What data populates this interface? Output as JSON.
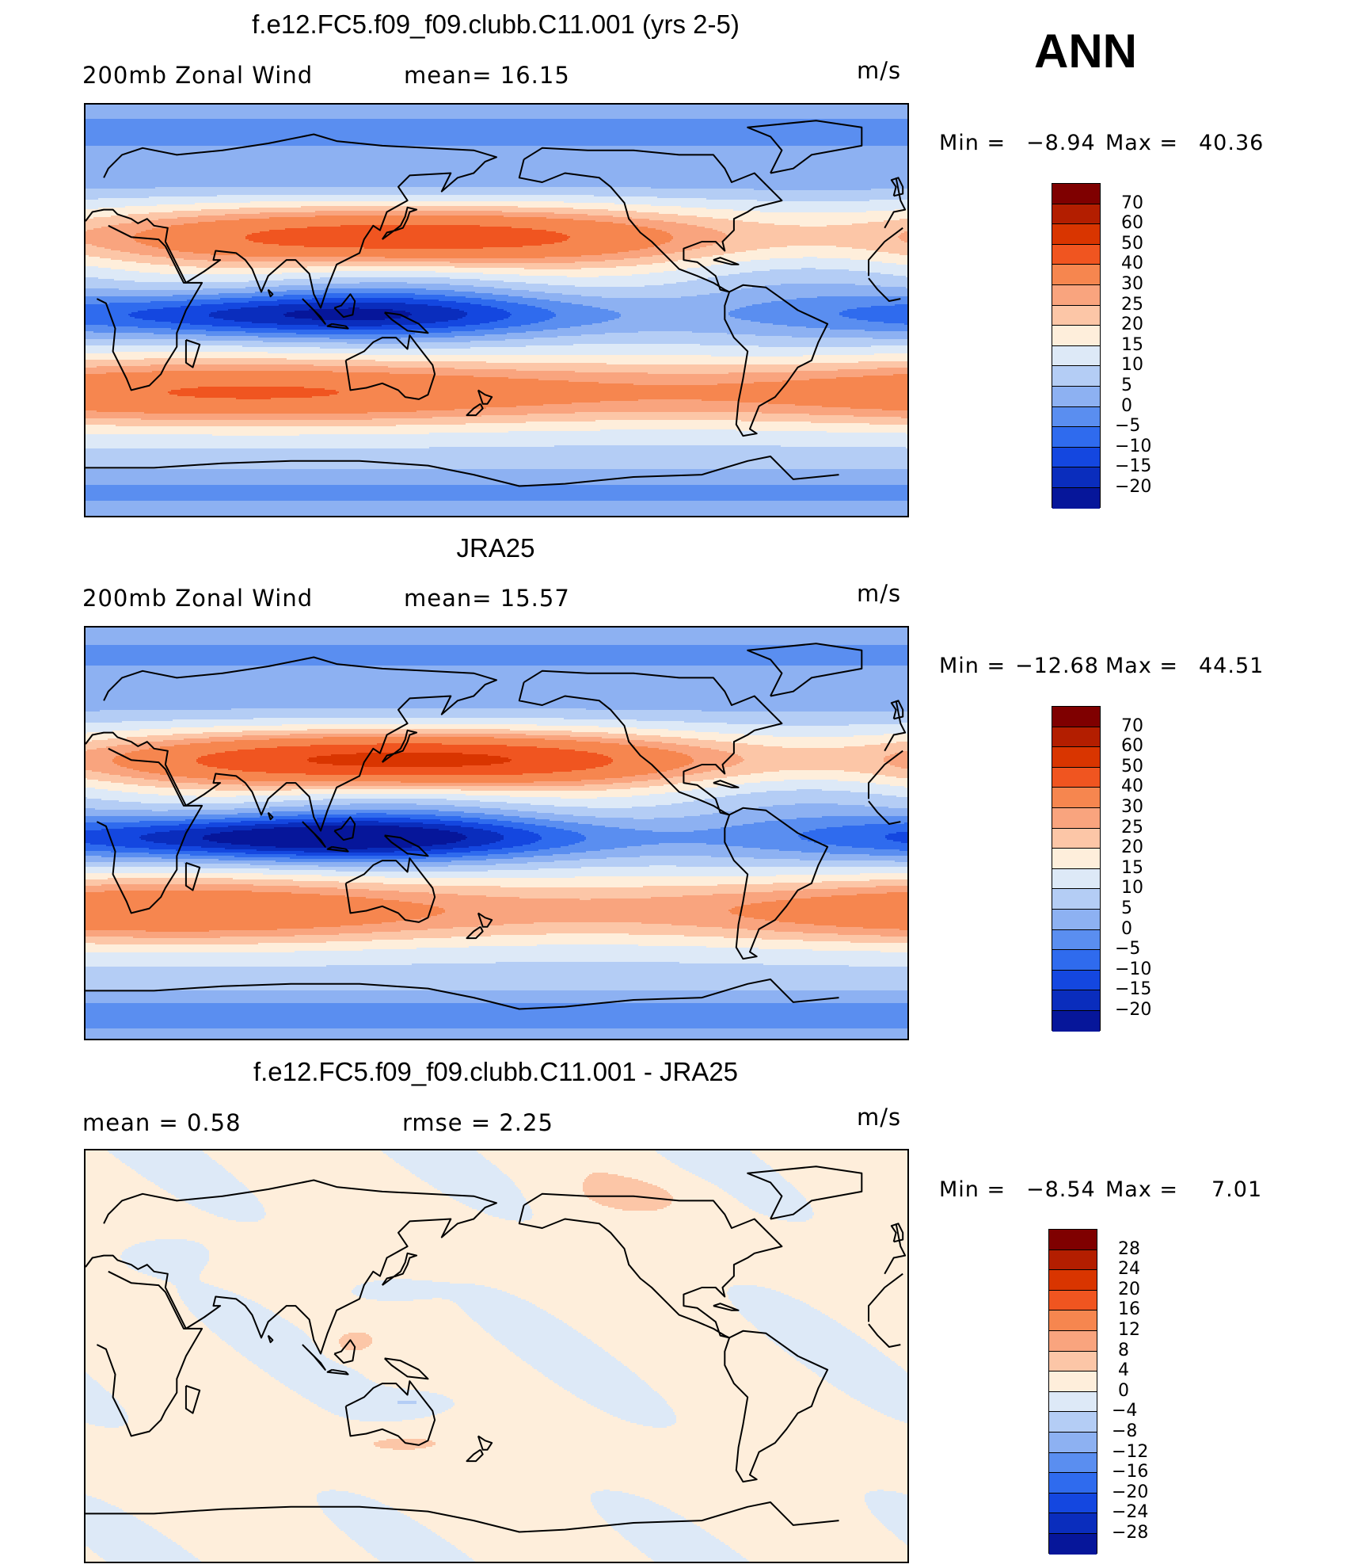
{
  "season": "ANN",
  "panels": [
    {
      "title": "f.e12.FC5.f09_f09.clubb.C11.001 (yrs 2-5)",
      "left_label": "200mb  Zonal  Wind",
      "center_label": "mean=   16.15",
      "units": "m/s",
      "min_label": "Min  =",
      "min_value": "−8.94",
      "max_label": "Max  =",
      "max_value": "40.36",
      "cbar_levels": [
        "70",
        "60",
        "50",
        "40",
        "30",
        "25",
        "20",
        "15",
        "10",
        "5",
        "0",
        "−5",
        "−10",
        "−15",
        "−20"
      ],
      "cbar_colors": [
        "#7f0000",
        "#b31e00",
        "#d93500",
        "#f05520",
        "#f6864f",
        "#f9a47e",
        "#fcc6a7",
        "#feeedb",
        "#dde9f7",
        "#b4cdf5",
        "#8db1f2",
        "#5a8ef0",
        "#2f6bee",
        "#1447e0",
        "#0a2dbd",
        "#06169a"
      ]
    },
    {
      "title": "JRA25",
      "left_label": "200mb  Zonal  Wind",
      "center_label": "mean=   15.57",
      "units": "m/s",
      "min_label": "Min  =",
      "min_value": "−12.68",
      "max_label": "Max  =",
      "max_value": "44.51",
      "cbar_levels": [
        "70",
        "60",
        "50",
        "40",
        "30",
        "25",
        "20",
        "15",
        "10",
        "5",
        "0",
        "−5",
        "−10",
        "−15",
        "−20"
      ],
      "cbar_colors": [
        "#7f0000",
        "#b31e00",
        "#d93500",
        "#f05520",
        "#f6864f",
        "#f9a47e",
        "#fcc6a7",
        "#feeedb",
        "#dde9f7",
        "#b4cdf5",
        "#8db1f2",
        "#5a8ef0",
        "#2f6bee",
        "#1447e0",
        "#0a2dbd",
        "#06169a"
      ]
    },
    {
      "title": "f.e12.FC5.f09_f09.clubb.C11.001 - JRA25",
      "left_label": "mean  =     0.58",
      "center_label": "rmse  =     2.25",
      "units": "m/s",
      "min_label": "Min  =",
      "min_value": "−8.54",
      "max_label": "Max  =",
      "max_value": "7.01",
      "cbar_levels": [
        "28",
        "24",
        "20",
        "16",
        "12",
        "8",
        "4",
        "0",
        "−4",
        "−8",
        "−12",
        "−16",
        "−20",
        "−24",
        "−28"
      ],
      "cbar_colors": [
        "#7f0000",
        "#b31e00",
        "#d93500",
        "#f05520",
        "#f6864f",
        "#f9a47e",
        "#fcc6a7",
        "#feeedb",
        "#dde9f7",
        "#b4cdf5",
        "#8db1f2",
        "#5a8ef0",
        "#2f6bee",
        "#1447e0",
        "#0a2dbd",
        "#06169a"
      ]
    }
  ],
  "chart_data": [
    {
      "type": "heatmap",
      "title": "f.e12.FC5.f09_f09.clubb.C11.001 (yrs 2-5)",
      "variable": "200mb Zonal Wind",
      "units": "m/s",
      "mean": 16.15,
      "min": -8.94,
      "max": 40.36,
      "levels": [
        -20,
        -15,
        -10,
        -5,
        0,
        5,
        10,
        15,
        20,
        25,
        30,
        40,
        50,
        60,
        70
      ],
      "jets": [
        {
          "lat": 32,
          "strength": 37
        },
        {
          "lat": -36,
          "strength": 33
        },
        {
          "lat": -2,
          "strength": -8
        },
        {
          "lat": 70,
          "strength": 4
        },
        {
          "lat": -72,
          "strength": 6
        }
      ]
    },
    {
      "type": "heatmap",
      "title": "JRA25",
      "variable": "200mb Zonal Wind",
      "units": "m/s",
      "mean": 15.57,
      "min": -12.68,
      "max": 44.51,
      "levels": [
        -20,
        -15,
        -10,
        -5,
        0,
        5,
        10,
        15,
        20,
        25,
        30,
        40,
        50,
        60,
        70
      ],
      "jets": [
        {
          "lat": 32,
          "strength": 42
        },
        {
          "lat": -34,
          "strength": 31
        },
        {
          "lat": -2,
          "strength": -12
        },
        {
          "lat": 70,
          "strength": 5
        },
        {
          "lat": -72,
          "strength": 4
        }
      ]
    },
    {
      "type": "heatmap",
      "title": "f.e12.FC5.f09_f09.clubb.C11.001 - JRA25",
      "variable": "difference",
      "units": "m/s",
      "mean": 0.58,
      "rmse": 2.25,
      "min": -8.54,
      "max": 7.01,
      "levels": [
        -28,
        -24,
        -20,
        -16,
        -12,
        -8,
        -4,
        0,
        4,
        8,
        12,
        16,
        20,
        24,
        28
      ]
    }
  ]
}
